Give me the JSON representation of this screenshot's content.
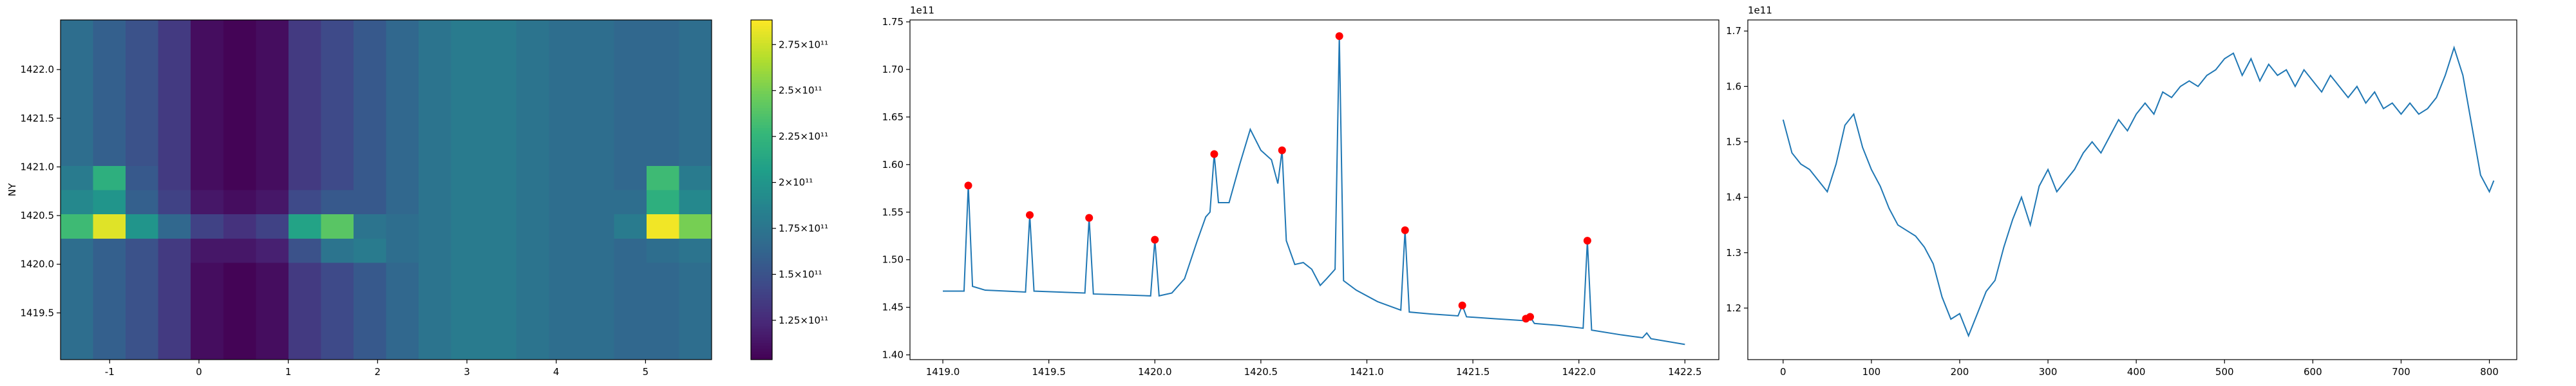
{
  "chart_data": [
    {
      "type": "heatmap",
      "ylabel": "NY",
      "colormap": "viridis",
      "xlim": [
        -1.55,
        5.74
      ],
      "ylim": [
        1419.02,
        1422.51
      ],
      "xticks": [
        -1,
        0,
        1,
        2,
        3,
        4,
        5
      ],
      "yticks": [
        {
          "value": 1419.5,
          "label": "1419.5"
        },
        {
          "value": 1420.0,
          "label": "1420.0"
        },
        {
          "value": 1420.5,
          "label": "1420.5"
        },
        {
          "value": 1421.0,
          "label": "1421.0"
        },
        {
          "value": 1421.5,
          "label": "1421.5"
        },
        {
          "value": 1422.0,
          "label": "1422.0"
        }
      ],
      "clim": [
        1.036,
        2.884
      ],
      "cticks": [
        {
          "value": 1.25,
          "label": "1.25×10¹¹"
        },
        {
          "value": 1.5,
          "label": "1.5×10¹¹"
        },
        {
          "value": 1.75,
          "label": "1.75×10¹¹"
        },
        {
          "value": 2,
          "label": "2×10¹¹"
        },
        {
          "value": 2.25,
          "label": "2.25×10¹¹"
        },
        {
          "value": 2.5,
          "label": "2.5×10¹¹"
        },
        {
          "value": 2.75,
          "label": "2.75×10¹¹"
        }
      ],
      "z": [
        [
          1.7,
          1.6,
          1.5,
          1.35,
          1.1,
          1.05,
          1.1,
          1.35,
          1.45,
          1.55,
          1.65,
          1.75,
          1.8,
          1.8,
          1.75,
          1.7,
          1.7,
          1.65,
          1.65,
          1.7
        ],
        [
          1.7,
          1.6,
          1.5,
          1.35,
          1.1,
          1.05,
          1.1,
          1.35,
          1.45,
          1.55,
          1.65,
          1.75,
          1.8,
          1.8,
          1.75,
          1.7,
          1.7,
          1.65,
          1.65,
          1.7
        ],
        [
          1.7,
          1.6,
          1.5,
          1.35,
          1.1,
          1.05,
          1.1,
          1.35,
          1.45,
          1.55,
          1.65,
          1.75,
          1.8,
          1.8,
          1.75,
          1.7,
          1.7,
          1.65,
          1.65,
          1.7
        ],
        [
          1.7,
          1.6,
          1.5,
          1.35,
          1.1,
          1.05,
          1.1,
          1.35,
          1.45,
          1.55,
          1.65,
          1.75,
          1.8,
          1.8,
          1.75,
          1.7,
          1.7,
          1.65,
          1.65,
          1.7
        ],
        [
          1.7,
          1.6,
          1.5,
          1.35,
          1.15,
          1.15,
          1.2,
          1.5,
          1.75,
          1.8,
          1.7,
          1.75,
          1.8,
          1.8,
          1.75,
          1.7,
          1.7,
          1.65,
          1.7,
          1.75
        ],
        [
          2.3,
          2.8,
          2.0,
          1.65,
          1.4,
          1.3,
          1.4,
          2.1,
          2.4,
          1.75,
          1.7,
          1.75,
          1.8,
          1.8,
          1.75,
          1.7,
          1.7,
          1.8,
          2.85,
          2.5
        ],
        [
          1.9,
          2.0,
          1.6,
          1.4,
          1.15,
          1.1,
          1.15,
          1.45,
          1.55,
          1.55,
          1.65,
          1.75,
          1.8,
          1.8,
          1.75,
          1.7,
          1.7,
          1.7,
          2.2,
          1.9
        ],
        [
          1.8,
          2.2,
          1.55,
          1.35,
          1.1,
          1.05,
          1.1,
          1.35,
          1.45,
          1.55,
          1.65,
          1.75,
          1.8,
          1.8,
          1.75,
          1.7,
          1.7,
          1.65,
          2.3,
          1.8
        ],
        [
          1.7,
          1.6,
          1.5,
          1.35,
          1.1,
          1.05,
          1.1,
          1.35,
          1.45,
          1.55,
          1.65,
          1.75,
          1.8,
          1.8,
          1.75,
          1.7,
          1.7,
          1.65,
          1.65,
          1.7
        ],
        [
          1.7,
          1.6,
          1.5,
          1.35,
          1.1,
          1.05,
          1.1,
          1.35,
          1.45,
          1.55,
          1.65,
          1.75,
          1.8,
          1.8,
          1.75,
          1.7,
          1.7,
          1.65,
          1.65,
          1.7
        ],
        [
          1.7,
          1.6,
          1.5,
          1.35,
          1.1,
          1.05,
          1.1,
          1.35,
          1.45,
          1.55,
          1.65,
          1.75,
          1.8,
          1.8,
          1.75,
          1.7,
          1.7,
          1.65,
          1.65,
          1.7
        ],
        [
          1.7,
          1.6,
          1.5,
          1.35,
          1.1,
          1.05,
          1.1,
          1.35,
          1.45,
          1.55,
          1.65,
          1.75,
          1.8,
          1.8,
          1.75,
          1.7,
          1.7,
          1.65,
          1.65,
          1.7
        ],
        [
          1.7,
          1.6,
          1.5,
          1.35,
          1.1,
          1.05,
          1.1,
          1.35,
          1.45,
          1.55,
          1.65,
          1.75,
          1.8,
          1.8,
          1.75,
          1.7,
          1.7,
          1.65,
          1.65,
          1.7
        ],
        [
          1.7,
          1.6,
          1.5,
          1.35,
          1.1,
          1.05,
          1.1,
          1.35,
          1.45,
          1.55,
          1.65,
          1.75,
          1.8,
          1.8,
          1.75,
          1.7,
          1.7,
          1.65,
          1.65,
          1.7
        ]
      ]
    },
    {
      "type": "line",
      "offset_label": "1e11",
      "color": "#1f77b4",
      "xlim": [
        1418.845,
        1422.66
      ],
      "ylim": [
        1.395,
        1.752
      ],
      "xticks": [
        {
          "value": 1419.0,
          "label": "1419.0"
        },
        1419.5,
        {
          "value": 1420.0,
          "label": "1420.0"
        },
        1420.5,
        {
          "value": 1421.0,
          "label": "1421.0"
        },
        1421.5,
        {
          "value": 1422.0,
          "label": "1422.0"
        },
        1422.5
      ],
      "yticks": [
        {
          "value": 1.4,
          "label": "1.40"
        },
        1.45,
        {
          "value": 1.5,
          "label": "1.50"
        },
        1.55,
        {
          "value": 1.6,
          "label": "1.60"
        },
        1.65,
        {
          "value": 1.7,
          "label": "1.70"
        },
        1.75
      ],
      "x": [
        1419.0,
        1419.1,
        1419.12,
        1419.14,
        1419.2,
        1419.3,
        1419.39,
        1419.41,
        1419.43,
        1419.55,
        1419.67,
        1419.69,
        1419.71,
        1419.85,
        1419.98,
        1420.0,
        1420.02,
        1420.08,
        1420.14,
        1420.2,
        1420.24,
        1420.26,
        1420.28,
        1420.3,
        1420.35,
        1420.4,
        1420.45,
        1420.5,
        1420.55,
        1420.58,
        1420.6,
        1420.62,
        1420.66,
        1420.7,
        1420.74,
        1420.78,
        1420.81,
        1420.85,
        1420.87,
        1420.89,
        1420.95,
        1421.05,
        1421.16,
        1421.18,
        1421.2,
        1421.3,
        1421.43,
        1421.45,
        1421.47,
        1421.6,
        1421.74,
        1421.75,
        1421.77,
        1421.79,
        1421.9,
        1422.02,
        1422.04,
        1422.06,
        1422.2,
        1422.3,
        1422.32,
        1422.34,
        1422.5
      ],
      "values": [
        1.467,
        1.467,
        1.578,
        1.472,
        1.468,
        1.467,
        1.466,
        1.547,
        1.467,
        1.466,
        1.465,
        1.544,
        1.464,
        1.463,
        1.462,
        1.521,
        1.462,
        1.465,
        1.48,
        1.52,
        1.545,
        1.55,
        1.611,
        1.56,
        1.56,
        1.6,
        1.637,
        1.615,
        1.605,
        1.58,
        1.615,
        1.52,
        1.495,
        1.497,
        1.49,
        1.473,
        1.48,
        1.49,
        1.735,
        1.478,
        1.468,
        1.456,
        1.447,
        1.531,
        1.445,
        1.443,
        1.441,
        1.452,
        1.44,
        1.438,
        1.436,
        1.438,
        1.44,
        1.433,
        1.431,
        1.428,
        1.52,
        1.426,
        1.421,
        1.418,
        1.423,
        1.417,
        1.411
      ],
      "markers": {
        "color": "#ff0000",
        "x": [
          1419.12,
          1419.41,
          1419.69,
          1420.0,
          1420.28,
          1420.6,
          1420.87,
          1421.18,
          1421.45,
          1421.75,
          1421.77,
          1422.04
        ],
        "values": [
          1.578,
          1.547,
          1.544,
          1.521,
          1.611,
          1.615,
          1.735,
          1.531,
          1.452,
          1.438,
          1.44,
          1.52
        ]
      }
    },
    {
      "type": "line",
      "offset_label": "1e11",
      "color": "#1f77b4",
      "xlim": [
        -40,
        831
      ],
      "ylim": [
        1.107,
        1.72
      ],
      "xticks": [
        0,
        100,
        200,
        300,
        400,
        500,
        600,
        700,
        800
      ],
      "yticks": [
        1.2,
        1.3,
        1.4,
        1.5,
        1.6,
        1.7
      ],
      "x": [
        0,
        10,
        20,
        30,
        40,
        50,
        60,
        70,
        80,
        90,
        100,
        110,
        120,
        130,
        140,
        150,
        160,
        170,
        180,
        190,
        200,
        210,
        220,
        230,
        240,
        250,
        260,
        270,
        280,
        290,
        300,
        310,
        320,
        330,
        340,
        350,
        360,
        370,
        380,
        390,
        400,
        410,
        420,
        430,
        440,
        450,
        460,
        470,
        480,
        490,
        500,
        510,
        520,
        530,
        540,
        550,
        560,
        570,
        580,
        590,
        600,
        610,
        620,
        630,
        640,
        650,
        660,
        670,
        680,
        690,
        700,
        710,
        720,
        730,
        740,
        750,
        760,
        770,
        780,
        790,
        800,
        805
      ],
      "values": [
        1.54,
        1.48,
        1.46,
        1.45,
        1.43,
        1.41,
        1.46,
        1.53,
        1.55,
        1.49,
        1.45,
        1.42,
        1.38,
        1.35,
        1.34,
        1.33,
        1.31,
        1.28,
        1.22,
        1.18,
        1.19,
        1.15,
        1.19,
        1.23,
        1.25,
        1.31,
        1.36,
        1.4,
        1.35,
        1.42,
        1.45,
        1.41,
        1.43,
        1.45,
        1.48,
        1.5,
        1.48,
        1.51,
        1.54,
        1.52,
        1.55,
        1.57,
        1.55,
        1.59,
        1.58,
        1.6,
        1.61,
        1.6,
        1.62,
        1.63,
        1.65,
        1.66,
        1.62,
        1.65,
        1.61,
        1.64,
        1.62,
        1.63,
        1.6,
        1.63,
        1.61,
        1.59,
        1.62,
        1.6,
        1.58,
        1.6,
        1.57,
        1.59,
        1.56,
        1.57,
        1.55,
        1.57,
        1.55,
        1.56,
        1.58,
        1.62,
        1.67,
        1.62,
        1.53,
        1.44,
        1.41,
        1.43
      ]
    }
  ]
}
